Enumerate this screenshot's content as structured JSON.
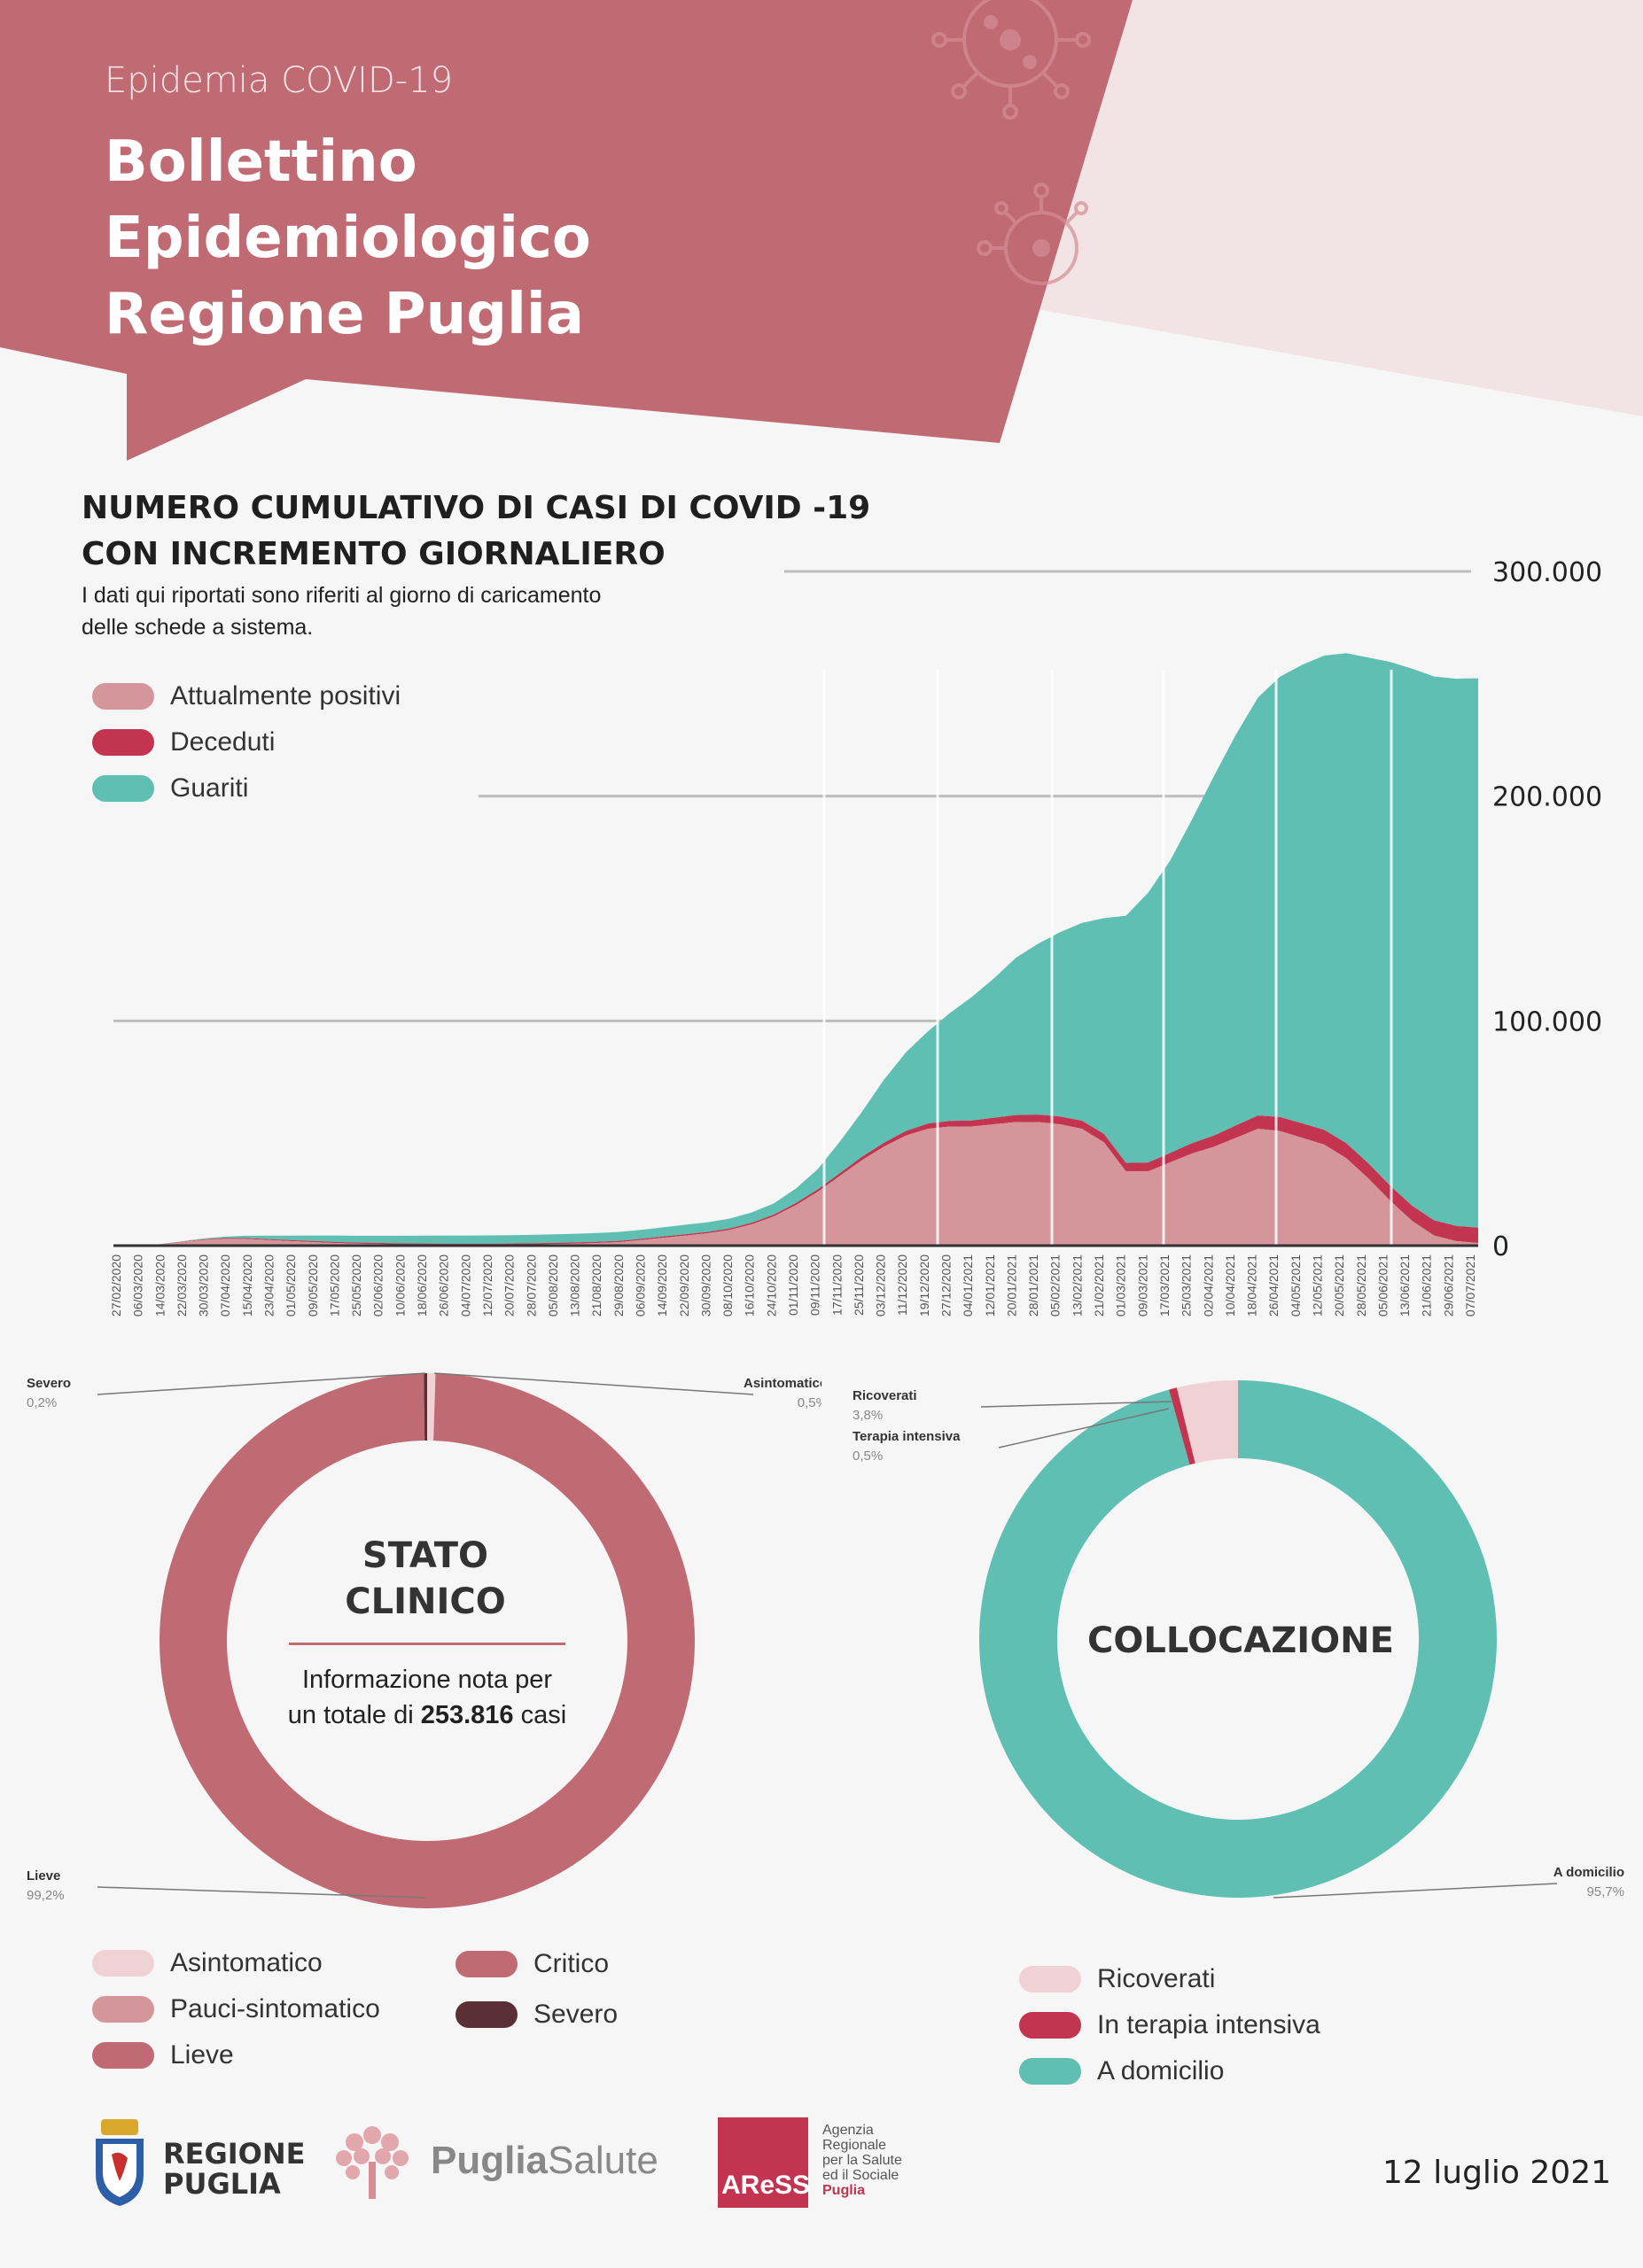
{
  "header": {
    "subtitle": "Epidemia COVID-19",
    "title_line1": "Bollettino Epidemiologico",
    "title_line2": "Regione Puglia"
  },
  "chart_intro": {
    "title_line1": "NUMERO CUMULATIVO DI CASI DI COVID -19",
    "title_line2": "CON INCREMENTO GIORNALIERO",
    "note_line1": "I dati qui riportati sono riferiti al giorno di caricamento",
    "note_line2": "delle schede a sistema."
  },
  "colors": {
    "header_bg": "#c06b74",
    "positive": "#d4969b",
    "deceased": "#c2344f",
    "recovered": "#5fbfb2",
    "asymptomatic": "#f1d2d4",
    "mild": "#c06b74",
    "severe": "#5a3036"
  },
  "chart_data": [
    {
      "type": "area",
      "stacked": true,
      "y_ticks": [
        0,
        100000,
        200000,
        300000
      ],
      "y_tick_labels": [
        "0",
        "100.000",
        "200.000",
        "300.000"
      ],
      "ylim": [
        0,
        300000
      ],
      "legend": [
        "Attualmente positivi",
        "Deceduti",
        "Guariti"
      ],
      "x_tick_labels": [
        "27/02/2020",
        "06/03/2020",
        "14/03/2020",
        "22/03/2020",
        "30/03/2020",
        "07/04/2020",
        "15/04/2020",
        "23/04/2020",
        "01/05/2020",
        "09/05/2020",
        "17/05/2020",
        "25/05/2020",
        "02/06/2020",
        "10/06/2020",
        "18/06/2020",
        "26/06/2020",
        "04/07/2020",
        "12/07/2020",
        "20/07/2020",
        "28/07/2020",
        "05/08/2020",
        "13/08/2020",
        "21/08/2020",
        "29/08/2020",
        "06/09/2020",
        "14/09/2020",
        "22/09/2020",
        "30/09/2020",
        "08/10/2020",
        "16/10/2020",
        "24/10/2020",
        "01/11/2020",
        "09/11/2020",
        "17/11/2020",
        "25/11/2020",
        "03/12/2020",
        "11/12/2020",
        "19/12/2020",
        "27/12/2020",
        "04/01/2021",
        "12/01/2021",
        "20/01/2021",
        "28/01/2021",
        "05/02/2021",
        "13/02/2021",
        "21/02/2021",
        "01/03/2021",
        "09/03/2021",
        "17/03/2021",
        "25/03/2021",
        "02/04/2021",
        "10/04/2021",
        "18/04/2021",
        "26/04/2021",
        "04/05/2021",
        "12/05/2021",
        "20/05/2021",
        "28/05/2021",
        "05/06/2021",
        "13/06/2021",
        "21/06/2021",
        "29/06/2021",
        "07/07/2021"
      ],
      "series": [
        {
          "name": "Attualmente positivi",
          "values": [
            0,
            100,
            500,
            1500,
            2500,
            3000,
            3000,
            2500,
            2000,
            1600,
            1200,
            900,
            700,
            500,
            400,
            350,
            300,
            300,
            400,
            500,
            700,
            900,
            1200,
            1600,
            2500,
            3500,
            4500,
            5500,
            7000,
            9500,
            13000,
            18000,
            24000,
            31000,
            38000,
            44000,
            49000,
            52000,
            53000,
            53000,
            54000,
            55000,
            55000,
            54000,
            52000,
            46000,
            33000,
            33000,
            37000,
            41000,
            44000,
            48000,
            52000,
            51000,
            48000,
            45000,
            39000,
            30000,
            20000,
            11000,
            4500,
            2000,
            1200
          ]
        },
        {
          "name": "Deceduti",
          "values": [
            0,
            5,
            40,
            150,
            250,
            350,
            400,
            430,
            450,
            470,
            490,
            500,
            510,
            510,
            520,
            520,
            520,
            520,
            520,
            520,
            520,
            530,
            530,
            540,
            550,
            570,
            590,
            610,
            640,
            700,
            780,
            900,
            1050,
            1250,
            1500,
            1750,
            2000,
            2300,
            2500,
            2700,
            2900,
            3100,
            3300,
            3450,
            3600,
            3700,
            3800,
            3950,
            4200,
            4600,
            5000,
            5500,
            5900,
            6200,
            6400,
            6550,
            6650,
            6700,
            6720,
            6740,
            6750,
            6760,
            6770
          ]
        },
        {
          "name": "Guariti",
          "values": [
            0,
            0,
            10,
            100,
            300,
            600,
            1000,
            1500,
            2000,
            2400,
            2800,
            3000,
            3200,
            3400,
            3500,
            3600,
            3650,
            3700,
            3700,
            3750,
            3800,
            3850,
            3900,
            3950,
            4000,
            4100,
            4200,
            4300,
            4400,
            4600,
            5000,
            6500,
            9000,
            14000,
            20000,
            28000,
            35000,
            41000,
            48000,
            55000,
            62000,
            70000,
            76000,
            82000,
            88000,
            96000,
            110000,
            120000,
            130000,
            144000,
            160000,
            174000,
            186000,
            196000,
            204000,
            211000,
            218000,
            225000,
            233000,
            239000,
            242000,
            243500,
            244500
          ]
        }
      ]
    },
    {
      "type": "pie",
      "donut": true,
      "title_line1": "STATO",
      "title_line2": "CLINICO",
      "info_text": "Informazione nota per",
      "info_text2_prefix": "un totale di",
      "info_total": "253.816",
      "info_text2_suffix": "casi",
      "slices": [
        {
          "name": "Asintomatico",
          "value": 0.5,
          "label": "0,5%",
          "color": "#f1d2d4"
        },
        {
          "name": "Lieve",
          "value": 99.2,
          "label": "99,2%",
          "color": "#c06b74"
        },
        {
          "name": "Severo",
          "value": 0.2,
          "label": "0,2%",
          "color": "#5a3036"
        }
      ],
      "legend": [
        {
          "name": "Asintomatico",
          "color": "#f1d2d4"
        },
        {
          "name": "Pauci-sintomatico",
          "color": "#d4969b"
        },
        {
          "name": "Lieve",
          "color": "#c06b74"
        },
        {
          "name": "Critico",
          "color": "#c06b74"
        },
        {
          "name": "Severo",
          "color": "#5a3036"
        }
      ]
    },
    {
      "type": "pie",
      "donut": true,
      "title": "COLLOCAZIONE",
      "slices": [
        {
          "name": "A domicilio",
          "value": 95.7,
          "label": "95,7%",
          "color": "#5fbfb2"
        },
        {
          "name": "Terapia intensiva",
          "value": 0.5,
          "label": "0,5%",
          "color": "#c2344f"
        },
        {
          "name": "Ricoverati",
          "value": 3.8,
          "label": "3,8%",
          "color": "#f1d2d4"
        }
      ],
      "legend": [
        {
          "name": "Ricoverati",
          "color": "#f1d2d4"
        },
        {
          "name": "In terapia intensiva",
          "color": "#c2344f"
        },
        {
          "name": "A domicilio",
          "color": "#5fbfb2"
        }
      ]
    }
  ],
  "footer": {
    "regione_line1": "REGIONE",
    "regione_line2": "PUGLIA",
    "puglia_salute_a": "Puglia",
    "puglia_salute_b": "Salute",
    "aress_logo": "AReSS",
    "aress_text1": "Agenzia",
    "aress_text2": "Regionale",
    "aress_text3": "per la Salute",
    "aress_text4": "ed il Sociale",
    "aress_text5": "Puglia",
    "date": "12 luglio 2021"
  }
}
